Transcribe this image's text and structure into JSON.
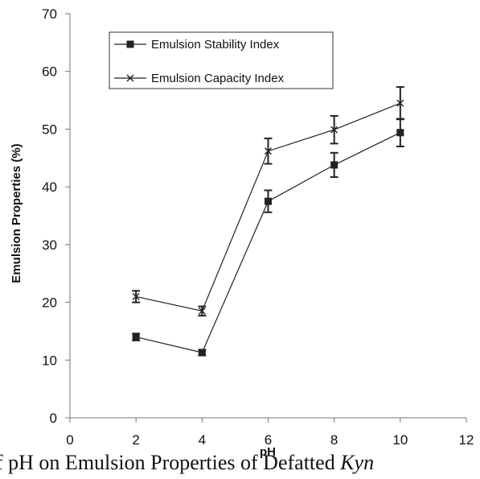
{
  "chart_data": {
    "type": "line",
    "x": [
      2,
      4,
      6,
      8,
      10
    ],
    "series": [
      {
        "name": "Emulsion Stability Index",
        "marker": "square",
        "values": [
          14,
          11.3,
          37.5,
          43.8,
          49.4
        ],
        "errors": [
          0.6,
          0.5,
          1.9,
          2.1,
          2.4
        ]
      },
      {
        "name": "Emulsion Capacity Index",
        "marker": "x",
        "values": [
          21,
          18.5,
          46.2,
          49.9,
          54.5
        ],
        "errors": [
          1.0,
          0.8,
          2.2,
          2.4,
          2.8
        ]
      }
    ],
    "xlabel": "pH",
    "ylabel": "Emulsion  Properties (%)",
    "xlim": [
      0,
      12
    ],
    "ylim": [
      0,
      70
    ],
    "xticks": [
      0,
      2,
      4,
      6,
      8,
      10,
      12
    ],
    "yticks": [
      0,
      10,
      20,
      30,
      40,
      50,
      60,
      70
    ],
    "grid": false,
    "legend_position": "top-left",
    "line_color": "#222222"
  },
  "caption": {
    "text": "of pH on Emulsion Properties of Defatted ",
    "italic": "Kyn"
  }
}
